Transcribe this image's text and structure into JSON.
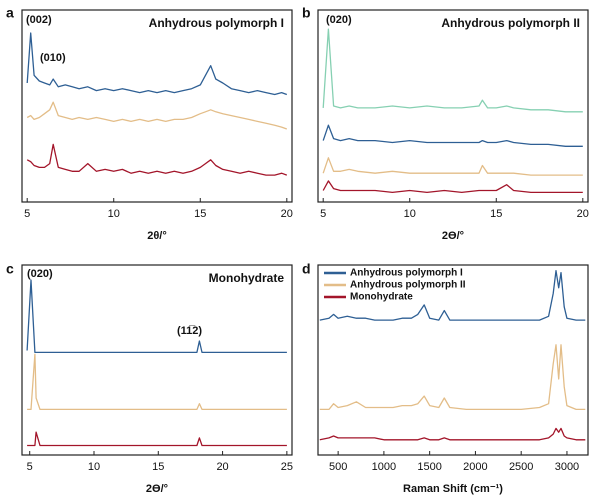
{
  "chart_data": [
    {
      "type": "line",
      "panel": "a",
      "title": "Anhydrous polymorph I",
      "annotations": [
        "(002)",
        "(010)"
      ],
      "xlabel": "2θ/°",
      "xlim": [
        4.7,
        20.3
      ],
      "xticks": [
        5,
        10,
        15,
        20
      ],
      "ylim": [
        0,
        100
      ],
      "x": [
        5,
        5.2,
        5.4,
        5.7,
        6,
        6.3,
        6.5,
        6.8,
        7.2,
        7.6,
        8,
        8.5,
        9,
        9.5,
        10,
        10.5,
        11,
        11.5,
        12,
        12.5,
        13,
        13.5,
        14,
        14.5,
        15,
        15.3,
        15.6,
        15.9,
        16.3,
        16.8,
        17.3,
        17.8,
        18.3,
        18.8,
        19.3,
        19.7,
        20
      ],
      "series": [
        {
          "color": "#2e5f94",
          "values": [
            62,
            88,
            66,
            63,
            62,
            61,
            64,
            60,
            61,
            60,
            59,
            60,
            58,
            59,
            58,
            59,
            58,
            57,
            58,
            57,
            58,
            57,
            58,
            59,
            61,
            66,
            71,
            64,
            62,
            59,
            58,
            57,
            58,
            57,
            56,
            57,
            56
          ]
        },
        {
          "color": "#e3bd88",
          "values": [
            44,
            45,
            43,
            44,
            46,
            48,
            52,
            45,
            44,
            43,
            44,
            43,
            44,
            43,
            42,
            43,
            42,
            43,
            42,
            43,
            42,
            43,
            43,
            44,
            46,
            47,
            48,
            47,
            46,
            45,
            44,
            43,
            42,
            41,
            40,
            39,
            38
          ]
        },
        {
          "color": "#a3152a",
          "values": [
            22,
            21,
            19,
            18,
            18,
            20,
            30,
            18,
            17,
            16,
            16,
            20,
            16,
            17,
            16,
            17,
            15,
            16,
            15,
            16,
            15,
            16,
            15,
            16,
            18,
            20,
            22,
            19,
            17,
            16,
            15,
            16,
            15,
            14,
            14,
            15,
            14
          ]
        }
      ]
    },
    {
      "type": "line",
      "panel": "b",
      "title": "Anhydrous polymorph II",
      "annotations": [
        "(020)"
      ],
      "xlabel": "2Ɵ/°",
      "xlim": [
        4.7,
        20.3
      ],
      "xticks": [
        5,
        10,
        15,
        20
      ],
      "ylim": [
        0,
        100
      ],
      "x": [
        5,
        5.3,
        5.6,
        6,
        6.5,
        7,
        8,
        9,
        10,
        11,
        12,
        13,
        14,
        14.2,
        14.5,
        15,
        15.6,
        16,
        17,
        18,
        19,
        20
      ],
      "series": [
        {
          "color": "#86d0b2",
          "values": [
            49,
            90,
            50,
            49,
            50,
            49,
            49,
            50,
            49,
            50,
            49,
            49,
            50,
            53,
            49,
            49,
            50,
            49,
            48,
            48,
            47,
            47
          ]
        },
        {
          "color": "#2e5f94",
          "values": [
            32,
            40,
            33,
            32,
            33,
            32,
            32,
            31,
            32,
            31,
            31,
            31,
            31,
            32,
            31,
            31,
            32,
            31,
            30,
            30,
            29,
            29
          ]
        },
        {
          "color": "#e3bd88",
          "values": [
            15,
            23,
            16,
            16,
            17,
            16,
            15,
            16,
            15,
            15,
            15,
            15,
            15,
            19,
            15,
            15,
            15,
            15,
            14,
            14,
            14,
            14
          ]
        },
        {
          "color": "#a3152a",
          "values": [
            6,
            11,
            7,
            6,
            6,
            6,
            6,
            5,
            6,
            5,
            6,
            5,
            6,
            6,
            6,
            6,
            9,
            6,
            5,
            5,
            5,
            5
          ]
        }
      ]
    },
    {
      "type": "line",
      "panel": "c",
      "title": "Monohydrate",
      "annotations": [
        "(020)",
        "(11̅2)"
      ],
      "xlabel": "2Ɵ/°",
      "xlim": [
        4.4,
        25.4
      ],
      "xticks": [
        5,
        10,
        15,
        20,
        25
      ],
      "ylim": [
        0,
        100
      ],
      "x": [
        4.8,
        5.1,
        5.4,
        5.5,
        5.8,
        7,
        9,
        11,
        13,
        15,
        17,
        18,
        18.2,
        18.4,
        20,
        22,
        24,
        25
      ],
      "series": [
        {
          "color": "#2e5f94",
          "values": [
            55,
            92,
            54,
            54,
            54,
            54,
            54,
            54,
            54,
            54,
            54,
            54,
            60,
            54,
            54,
            54,
            54,
            54
          ]
        },
        {
          "color": "#e3bd88",
          "values": [
            24,
            24,
            53,
            30,
            24,
            24,
            24,
            24,
            24,
            24,
            24,
            24,
            27,
            24,
            24,
            24,
            24,
            24
          ]
        },
        {
          "color": "#a3152a",
          "values": [
            5,
            5,
            5,
            12,
            5,
            5,
            5,
            5,
            5,
            5,
            5,
            5,
            9,
            5,
            5,
            5,
            5,
            5
          ]
        }
      ]
    },
    {
      "type": "line",
      "panel": "d",
      "xlabel": "Raman Shift (cm⁻¹)",
      "legend": "upper left",
      "xlim": [
        280,
        3230
      ],
      "xticks": [
        500,
        1000,
        1500,
        2000,
        2500,
        3000
      ],
      "ylim": [
        0,
        100
      ],
      "x": [
        300,
        400,
        450,
        500,
        600,
        700,
        800,
        900,
        1000,
        1100,
        1200,
        1300,
        1370,
        1440,
        1500,
        1600,
        1660,
        1720,
        1900,
        2100,
        2300,
        2500,
        2700,
        2800,
        2850,
        2880,
        2910,
        2935,
        2970,
        3000,
        3100,
        3200
      ],
      "series": [
        {
          "name": "Anhydrous polymorph I",
          "color": "#2e5f94",
          "values": [
            71,
            72,
            74,
            72,
            73,
            72,
            72,
            71,
            71,
            71,
            72,
            72,
            74,
            79,
            72,
            71,
            76,
            71,
            71,
            71,
            71,
            71,
            71,
            73,
            85,
            97,
            88,
            96,
            78,
            72,
            71,
            71
          ]
        },
        {
          "name": "Anhydrous polymorph II",
          "color": "#e3bd88",
          "values": [
            24,
            24,
            27,
            25,
            26,
            28,
            25,
            25,
            25,
            25,
            26,
            26,
            27,
            31,
            26,
            25,
            30,
            25,
            24,
            24,
            24,
            24,
            25,
            27,
            48,
            58,
            40,
            58,
            36,
            26,
            24,
            24
          ]
        },
        {
          "name": "Monohydrate",
          "color": "#a3152a",
          "values": [
            8,
            9,
            10,
            9,
            9,
            9,
            9,
            9,
            8,
            8,
            8,
            8,
            8,
            9,
            8,
            8,
            9,
            8,
            8,
            8,
            8,
            8,
            8,
            9,
            11,
            14,
            12,
            14,
            10,
            9,
            8,
            8
          ]
        }
      ]
    }
  ]
}
